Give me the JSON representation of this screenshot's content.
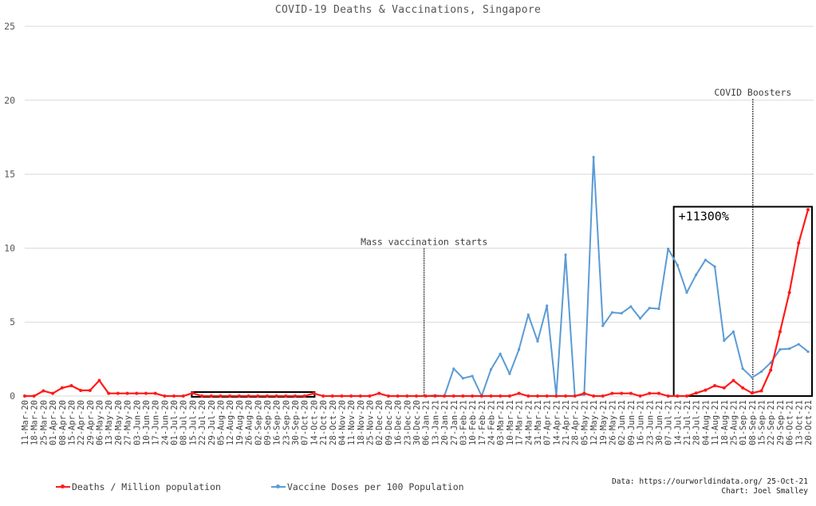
{
  "chart_data": {
    "type": "line",
    "title": "COVID-19 Deaths & Vaccinations, Singapore",
    "ylim": [
      0,
      25
    ],
    "yticks": [
      "0",
      "5",
      "10",
      "15",
      "20",
      "25"
    ],
    "categories": [
      "11-Mar-20",
      "18-Mar-20",
      "25-Mar-20",
      "01-Apr-20",
      "08-Apr-20",
      "15-Apr-20",
      "22-Apr-20",
      "29-Apr-20",
      "06-May-20",
      "13-May-20",
      "20-May-20",
      "27-May-20",
      "03-Jun-20",
      "10-Jun-20",
      "17-Jun-20",
      "24-Jun-20",
      "01-Jul-20",
      "08-Jul-20",
      "15-Jul-20",
      "22-Jul-20",
      "29-Jul-20",
      "05-Aug-20",
      "12-Aug-20",
      "19-Aug-20",
      "26-Aug-20",
      "02-Sep-20",
      "09-Sep-20",
      "16-Sep-20",
      "23-Sep-20",
      "30-Sep-20",
      "07-Oct-20",
      "14-Oct-20",
      "21-Oct-20",
      "28-Oct-20",
      "04-Nov-20",
      "11-Nov-20",
      "18-Nov-20",
      "25-Nov-20",
      "02-Dec-20",
      "09-Dec-20",
      "16-Dec-20",
      "23-Dec-20",
      "30-Dec-20",
      "06-Jan-21",
      "13-Jan-21",
      "20-Jan-21",
      "27-Jan-21",
      "03-Feb-21",
      "10-Feb-21",
      "17-Feb-21",
      "24-Feb-21",
      "03-Mar-21",
      "10-Mar-21",
      "17-Mar-21",
      "24-Mar-21",
      "31-Mar-21",
      "07-Apr-21",
      "14-Apr-21",
      "21-Apr-21",
      "28-Apr-21",
      "05-May-21",
      "12-May-21",
      "19-May-21",
      "26-May-21",
      "02-Jun-21",
      "09-Jun-21",
      "16-Jun-21",
      "23-Jun-21",
      "30-Jun-21",
      "07-Jul-21",
      "14-Jul-21",
      "21-Jul-21",
      "28-Jul-21",
      "04-Aug-21",
      "11-Aug-21",
      "18-Aug-21",
      "25-Aug-21",
      "01-Sep-21",
      "08-Sep-21",
      "15-Sep-21",
      "22-Sep-21",
      "29-Sep-21",
      "06-Oct-21",
      "13-Oct-21",
      "20-Oct-21"
    ],
    "series": [
      {
        "name": "Deaths / Million population",
        "color": "#ff1a1a",
        "values": [
          0,
          0,
          0.35,
          0.18,
          0.55,
          0.7,
          0.38,
          0.38,
          1.05,
          0.18,
          0.18,
          0.18,
          0.18,
          0.18,
          0.18,
          0,
          0,
          0,
          0.2,
          0,
          0,
          0,
          0,
          0,
          0,
          0,
          0,
          0,
          0,
          0,
          0,
          0.18,
          0,
          0,
          0,
          0,
          0,
          0,
          0.18,
          0,
          0,
          0,
          0,
          0,
          0,
          0,
          0,
          0,
          0,
          0,
          0,
          0,
          0,
          0.18,
          0,
          0,
          0,
          0,
          0,
          0,
          0.18,
          0,
          0,
          0.18,
          0.18,
          0.18,
          0,
          0.18,
          0.18,
          0,
          0,
          0,
          0.2,
          0.4,
          0.7,
          0.55,
          1.05,
          0.55,
          0.2,
          0.35,
          1.75,
          4.35,
          7,
          10.35,
          12.6
        ]
      },
      {
        "name": "Vaccine Doses per 100 Population",
        "color": "#5b9bd5",
        "values": [
          null,
          null,
          null,
          null,
          null,
          null,
          null,
          null,
          null,
          null,
          null,
          null,
          null,
          null,
          null,
          null,
          null,
          null,
          null,
          null,
          null,
          null,
          null,
          null,
          null,
          null,
          null,
          null,
          null,
          null,
          null,
          null,
          null,
          null,
          null,
          null,
          null,
          null,
          null,
          null,
          null,
          null,
          null,
          0,
          0.05,
          0,
          1.85,
          1.2,
          1.35,
          0,
          1.8,
          2.85,
          1.5,
          3.15,
          5.5,
          3.7,
          6.1,
          0,
          9.55,
          0,
          0.1,
          16.15,
          4.75,
          5.65,
          5.6,
          6.05,
          5.25,
          5.95,
          5.9,
          9.95,
          8.85,
          7,
          8.2,
          9.2,
          8.75,
          3.75,
          4.35,
          1.85,
          1.25,
          1.65,
          2.25,
          3.15,
          3.2,
          3.5,
          3
        ]
      }
    ],
    "annotations": [
      {
        "text": "Mass vaccination starts",
        "at": "06-Jan-21"
      },
      {
        "text": "COVID Boosters",
        "at": "15-Sep-21"
      },
      {
        "text": "+11300%"
      }
    ],
    "grid": true,
    "legend": "bottom-left"
  },
  "footer": {
    "source": "Data: https://ourworldindata.org/ 25-Oct-21",
    "credit": "Chart: Joel Smalley"
  }
}
